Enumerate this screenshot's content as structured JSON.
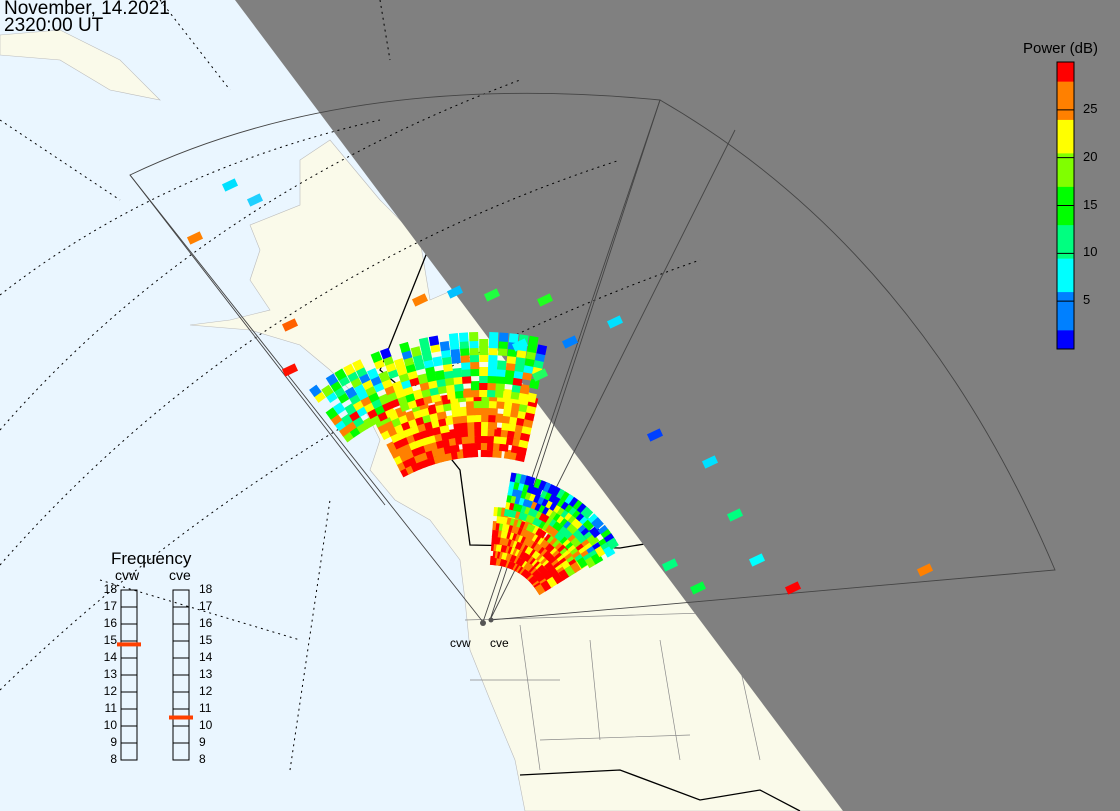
{
  "header": {
    "date": "November, 14.2021",
    "time": "2320:00 UT"
  },
  "colorbar": {
    "title": "Power (dB)",
    "ticks": [
      "25",
      "20",
      "15",
      "10",
      "5"
    ],
    "range": [
      0,
      30
    ],
    "colors": [
      "#0000ff",
      "#0080ff",
      "#00ffff",
      "#00ff80",
      "#00ff00",
      "#80ff00",
      "#ffff00",
      "#ff8000",
      "#ff0000"
    ]
  },
  "frequency": {
    "title": "Frequency",
    "radars": [
      {
        "name": "cvw",
        "value_mhz": 14.8
      },
      {
        "name": "cve",
        "value_mhz": 10.5
      }
    ],
    "scale": [
      "18",
      "17",
      "16",
      "15",
      "14",
      "13",
      "12",
      "11",
      "10",
      "9",
      "8"
    ],
    "marker_color": "#ff4000"
  },
  "sites": [
    {
      "name": "cvw"
    },
    {
      "name": "cve"
    }
  ],
  "colors": {
    "ocean": "#eaf6ff",
    "land": "#fafaea",
    "night": "#808080",
    "border": "#000000"
  }
}
